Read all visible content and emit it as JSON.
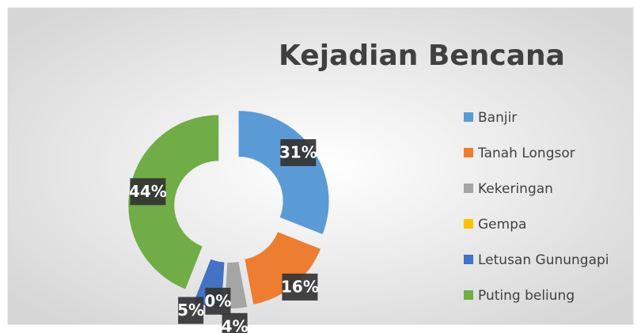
{
  "chart_data": {
    "type": "pie",
    "title": "Kejadian Bencana",
    "categories": [
      "Banjir",
      "Tanah Longsor",
      "Kekeringan",
      "Gempa",
      "Letusan Gunungapi",
      "Puting beliung"
    ],
    "values": [
      31,
      16,
      4,
      0,
      5,
      44
    ],
    "value_labels": [
      "31%",
      "16%",
      "4%",
      "0%",
      "5%",
      "44%"
    ],
    "colors": [
      "#5b9bd5",
      "#ed7d31",
      "#a5a5a5",
      "#ffc000",
      "#4472c4",
      "#70ad47"
    ],
    "legend": "right"
  }
}
